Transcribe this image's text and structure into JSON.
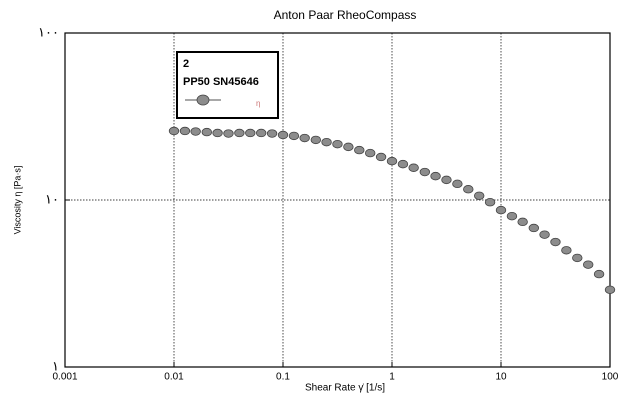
{
  "chart_data": {
    "type": "scatter",
    "title": "Anton Paar RheoCompass",
    "x_label": "Shear Rate γ̇ [1/s]",
    "y_label": "Viscosity η [Pa·s]",
    "x": [
      0.01,
      0.0126,
      0.0158,
      0.02,
      0.0251,
      0.0316,
      0.0398,
      0.0501,
      0.0631,
      0.0794,
      0.1,
      0.126,
      0.158,
      0.2,
      0.251,
      0.316,
      0.398,
      0.501,
      0.631,
      0.794,
      1,
      1.26,
      1.58,
      2,
      2.51,
      3.16,
      3.98,
      5.01,
      6.31,
      7.94,
      10,
      12.6,
      15.8,
      20,
      25.1,
      31.6,
      39.8,
      50.1,
      63.1,
      79.4,
      100
    ],
    "series": [
      {
        "name": "PP50 SN45646",
        "color": "#8c8c8c",
        "values": [
          25.9,
          25.9,
          25.7,
          25.5,
          25.2,
          25.0,
          25.2,
          25.2,
          25.2,
          25.0,
          24.5,
          24.2,
          23.5,
          22.9,
          22.2,
          21.6,
          20.8,
          19.9,
          19.1,
          18.1,
          17.1,
          16.4,
          15.6,
          14.7,
          13.9,
          13.2,
          12.5,
          11.6,
          10.6,
          9.7,
          8.7,
          8.0,
          7.4,
          6.8,
          6.2,
          5.6,
          5.0,
          4.5,
          4.1,
          3.6,
          2.9
        ]
      }
    ],
    "legend_title": "2",
    "legend_symbol": "η",
    "legend": "upper left",
    "xlim": [
      0.001,
      100
    ],
    "ylim": [
      1,
      100
    ],
    "xticks": [
      0.001,
      0.01,
      0.1,
      1,
      10,
      100
    ],
    "yticks": [
      {
        "value": 1,
        "label": "١"
      },
      {
        "value": 10,
        "label": "١٠"
      },
      {
        "value": 100,
        "label": "١٠٠"
      }
    ],
    "log_x": true,
    "log_y": true,
    "grid": true
  }
}
